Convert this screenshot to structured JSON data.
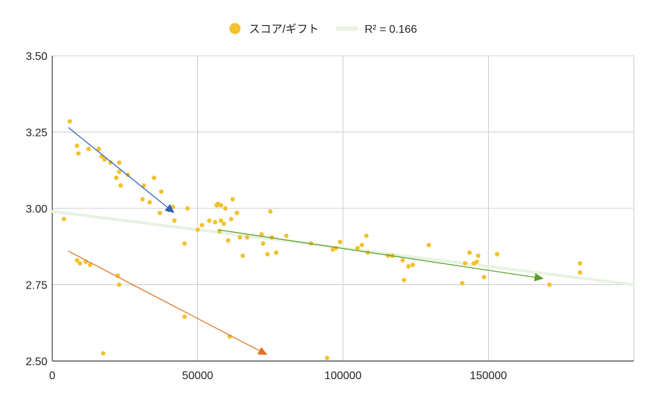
{
  "chart_data": {
    "type": "scatter",
    "title": "",
    "xlabel": "",
    "ylabel": "",
    "xlim": [
      0,
      200000
    ],
    "ylim": [
      2.5,
      3.5
    ],
    "x_ticks": [
      0,
      50000,
      100000,
      150000
    ],
    "x_tick_labels": [
      "0",
      "50000",
      "100000",
      "150000"
    ],
    "y_ticks": [
      2.5,
      2.75,
      3.0,
      3.25,
      3.5
    ],
    "y_tick_labels": [
      "2.50",
      "2.75",
      "3.00",
      "3.25",
      "3.50"
    ],
    "grid": true,
    "legend_position": "top",
    "series": [
      {
        "name": "スコア/ギフト",
        "color": "#f2c12e",
        "points": [
          [
            4000,
            2.965
          ],
          [
            6000,
            3.285
          ],
          [
            8500,
            3.205
          ],
          [
            9000,
            3.18
          ],
          [
            8500,
            2.83
          ],
          [
            9500,
            2.82
          ],
          [
            11500,
            2.825
          ],
          [
            12500,
            3.195
          ],
          [
            13000,
            2.815
          ],
          [
            16000,
            3.195
          ],
          [
            17000,
            3.17
          ],
          [
            18000,
            3.16
          ],
          [
            17500,
            2.525
          ],
          [
            20000,
            3.15
          ],
          [
            22000,
            3.1
          ],
          [
            23000,
            3.12
          ],
          [
            23000,
            3.15
          ],
          [
            23500,
            3.075
          ],
          [
            22500,
            2.78
          ],
          [
            23000,
            2.75
          ],
          [
            26000,
            3.11
          ],
          [
            31000,
            3.03
          ],
          [
            31500,
            3.075
          ],
          [
            33500,
            3.02
          ],
          [
            35000,
            3.1
          ],
          [
            37000,
            2.985
          ],
          [
            37500,
            3.055
          ],
          [
            40000,
            2.995
          ],
          [
            41500,
            3.005
          ],
          [
            42000,
            2.96
          ],
          [
            45500,
            2.885
          ],
          [
            46500,
            3.0
          ],
          [
            45500,
            2.645
          ],
          [
            50000,
            2.93
          ],
          [
            51500,
            2.945
          ],
          [
            54000,
            2.96
          ],
          [
            56000,
            2.955
          ],
          [
            56500,
            3.01
          ],
          [
            57000,
            3.015
          ],
          [
            57500,
            2.925
          ],
          [
            58000,
            3.01
          ],
          [
            58000,
            2.96
          ],
          [
            59000,
            2.95
          ],
          [
            59500,
            3.0
          ],
          [
            60500,
            2.895
          ],
          [
            61000,
            2.58
          ],
          [
            61500,
            2.965
          ],
          [
            62000,
            3.03
          ],
          [
            63500,
            2.985
          ],
          [
            64500,
            2.905
          ],
          [
            65500,
            2.845
          ],
          [
            67000,
            2.905
          ],
          [
            72000,
            2.915
          ],
          [
            72500,
            2.885
          ],
          [
            74000,
            2.85
          ],
          [
            75000,
            2.99
          ],
          [
            75500,
            2.905
          ],
          [
            77000,
            2.855
          ],
          [
            80500,
            2.91
          ],
          [
            89000,
            2.885
          ],
          [
            94500,
            2.51
          ],
          [
            96500,
            2.865
          ],
          [
            97500,
            2.87
          ],
          [
            99000,
            2.89
          ],
          [
            105000,
            2.87
          ],
          [
            106500,
            2.88
          ],
          [
            108000,
            2.91
          ],
          [
            108500,
            2.855
          ],
          [
            115500,
            2.845
          ],
          [
            117000,
            2.845
          ],
          [
            120500,
            2.83
          ],
          [
            121000,
            2.765
          ],
          [
            122500,
            2.81
          ],
          [
            124000,
            2.815
          ],
          [
            129500,
            2.88
          ],
          [
            141000,
            2.755
          ],
          [
            142000,
            2.82
          ],
          [
            143500,
            2.855
          ],
          [
            145000,
            2.82
          ],
          [
            146000,
            2.825
          ],
          [
            146500,
            2.845
          ],
          [
            148500,
            2.775
          ],
          [
            153000,
            2.85
          ],
          [
            171000,
            2.75
          ],
          [
            181500,
            2.82
          ],
          [
            181500,
            2.79
          ]
        ]
      }
    ],
    "trendline": {
      "name": "R² = 0.166",
      "color": "#e8f2e0",
      "from": [
        0,
        2.99
      ],
      "to": [
        200000,
        2.75
      ]
    },
    "annotations": [
      {
        "kind": "arrow",
        "color": "#2f5fb8",
        "from": [
          5500,
          3.265
        ],
        "to": [
          42000,
          2.985
        ]
      },
      {
        "kind": "arrow",
        "color": "#5aa02c",
        "from": [
          57000,
          2.93
        ],
        "to": [
          169000,
          2.77
        ]
      },
      {
        "kind": "arrow",
        "color": "#e07020",
        "from": [
          5500,
          2.86
        ],
        "to": [
          74000,
          2.52
        ]
      }
    ]
  }
}
